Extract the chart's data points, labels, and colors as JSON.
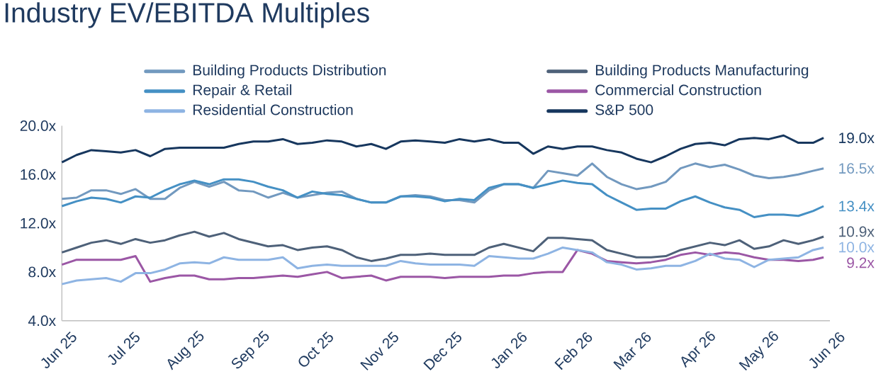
{
  "chart_data": {
    "type": "line",
    "title": "Industry EV/EBITDA Multiples",
    "x": [
      "2025-06-01",
      "2025-06-08",
      "2025-06-15",
      "2025-06-22",
      "2025-06-29",
      "2025-07-06",
      "2025-07-13",
      "2025-07-20",
      "2025-07-27",
      "2025-08-03",
      "2025-08-10",
      "2025-08-17",
      "2025-08-24",
      "2025-08-31",
      "2025-09-07",
      "2025-09-14",
      "2025-09-21",
      "2025-09-28",
      "2025-10-05",
      "2025-10-12",
      "2025-10-19",
      "2025-10-26",
      "2025-11-02",
      "2025-11-09",
      "2025-11-16",
      "2025-11-23",
      "2025-11-30",
      "2025-12-07",
      "2025-12-14",
      "2025-12-21",
      "2025-12-28",
      "2026-01-04",
      "2026-01-11",
      "2026-01-18",
      "2026-01-25",
      "2026-02-01",
      "2026-02-08",
      "2026-02-15",
      "2026-02-22",
      "2026-03-01",
      "2026-03-08",
      "2026-03-15",
      "2026-03-22",
      "2026-03-29",
      "2026-04-05",
      "2026-04-12",
      "2026-04-19",
      "2026-04-26",
      "2026-05-03",
      "2026-05-10",
      "2026-05-17",
      "2026-05-24",
      "2026-05-29"
    ],
    "xlim": [
      "2025-06-01",
      "2026-06-01"
    ],
    "xticks": [
      {
        "value": "2025-06-01",
        "label": "Jun 25"
      },
      {
        "value": "2025-07-01",
        "label": "Jul 25"
      },
      {
        "value": "2025-08-01",
        "label": "Aug 25"
      },
      {
        "value": "2025-09-01",
        "label": "Sep 25"
      },
      {
        "value": "2025-10-01",
        "label": "Oct 25"
      },
      {
        "value": "2025-11-01",
        "label": "Nov 25"
      },
      {
        "value": "2025-12-01",
        "label": "Dec 25"
      },
      {
        "value": "2026-01-01",
        "label": "Jan 26"
      },
      {
        "value": "2026-02-01",
        "label": "Feb 26"
      },
      {
        "value": "2026-03-01",
        "label": "Mar 26"
      },
      {
        "value": "2026-04-01",
        "label": "Apr 26"
      },
      {
        "value": "2026-05-01",
        "label": "May 26"
      },
      {
        "value": "2026-06-01",
        "label": "Jun 26"
      }
    ],
    "ylim": [
      4,
      20
    ],
    "yticks": [
      {
        "value": 4,
        "label": "4.0x"
      },
      {
        "value": 8,
        "label": "8.0x"
      },
      {
        "value": 12,
        "label": "12.0x"
      },
      {
        "value": 16,
        "label": "16.0x"
      },
      {
        "value": 20,
        "label": "20.0x"
      }
    ],
    "legend": "top",
    "series": [
      {
        "name": "Building Products Distribution",
        "color": "#7299BF",
        "values": [
          14.0,
          14.1,
          14.7,
          14.7,
          14.4,
          14.8,
          14.0,
          14.0,
          14.9,
          15.4,
          15.0,
          15.4,
          14.7,
          14.6,
          14.1,
          14.5,
          14.1,
          14.3,
          14.5,
          14.6,
          14.0,
          13.7,
          13.7,
          14.2,
          14.3,
          14.2,
          13.9,
          13.9,
          13.7,
          14.7,
          15.2,
          15.2,
          14.9,
          16.3,
          16.1,
          15.9,
          16.9,
          15.8,
          15.2,
          14.8,
          15.0,
          15.4,
          16.5,
          16.9,
          16.6,
          16.8,
          16.4,
          15.9,
          15.7,
          15.8,
          16.0,
          16.3,
          16.5
        ],
        "value_labels": [
          null,
          null,
          null,
          null,
          null,
          null,
          null,
          null,
          null,
          null,
          null,
          null,
          null,
          null,
          null,
          null,
          null,
          null,
          null,
          null,
          null,
          null,
          null,
          null,
          null,
          null,
          null,
          null,
          null,
          null,
          null,
          null,
          null,
          null,
          null,
          null,
          null,
          null,
          null,
          null,
          null,
          null,
          null,
          null,
          null,
          null,
          null,
          null,
          null,
          null,
          null,
          null,
          "16.5x"
        ]
      },
      {
        "name": "Building Products Manufacturing",
        "color": "#4E6179",
        "values": [
          9.6,
          10.0,
          10.4,
          10.6,
          10.3,
          10.7,
          10.4,
          10.6,
          11.0,
          11.3,
          10.9,
          11.2,
          10.7,
          10.4,
          10.1,
          10.2,
          9.8,
          10.0,
          10.1,
          9.8,
          9.2,
          8.9,
          9.1,
          9.4,
          9.4,
          9.5,
          9.4,
          9.4,
          9.4,
          10.0,
          10.3,
          10.0,
          9.7,
          10.8,
          10.8,
          10.7,
          10.6,
          9.8,
          9.5,
          9.2,
          9.2,
          9.3,
          9.8,
          10.1,
          10.4,
          10.2,
          10.6,
          9.9,
          10.1,
          10.6,
          10.3,
          10.6,
          10.9
        ],
        "value_labels": [
          null,
          null,
          null,
          null,
          null,
          null,
          null,
          null,
          null,
          null,
          null,
          null,
          null,
          null,
          null,
          null,
          null,
          null,
          null,
          null,
          null,
          null,
          null,
          null,
          null,
          null,
          null,
          null,
          null,
          null,
          null,
          null,
          null,
          null,
          null,
          null,
          null,
          null,
          null,
          null,
          null,
          null,
          null,
          null,
          null,
          null,
          null,
          null,
          null,
          null,
          null,
          null,
          "10.9x"
        ]
      },
      {
        "name": "Repair & Retail",
        "color": "#4590C4",
        "values": [
          13.4,
          13.8,
          14.1,
          14.0,
          13.7,
          14.2,
          14.1,
          14.7,
          15.2,
          15.5,
          15.2,
          15.6,
          15.6,
          15.4,
          15.0,
          14.7,
          14.1,
          14.6,
          14.4,
          14.3,
          14.0,
          13.7,
          13.7,
          14.2,
          14.2,
          14.1,
          13.8,
          14.0,
          13.9,
          14.9,
          15.2,
          15.2,
          14.9,
          15.2,
          15.5,
          15.3,
          15.2,
          14.3,
          13.7,
          13.1,
          13.2,
          13.2,
          13.8,
          14.2,
          13.7,
          13.3,
          13.1,
          12.5,
          12.7,
          12.7,
          12.6,
          13.0,
          13.4
        ],
        "value_labels": [
          null,
          null,
          null,
          null,
          null,
          null,
          null,
          null,
          null,
          null,
          null,
          null,
          null,
          null,
          null,
          null,
          null,
          null,
          null,
          null,
          null,
          null,
          null,
          null,
          null,
          null,
          null,
          null,
          null,
          null,
          null,
          null,
          null,
          null,
          null,
          null,
          null,
          null,
          null,
          null,
          null,
          null,
          null,
          null,
          null,
          null,
          null,
          null,
          null,
          null,
          null,
          null,
          "13.4x"
        ]
      },
      {
        "name": "Commercial Construction",
        "color": "#9B57A5",
        "values": [
          8.6,
          9.0,
          9.0,
          9.0,
          9.0,
          9.3,
          7.2,
          7.5,
          7.7,
          7.7,
          7.4,
          7.4,
          7.5,
          7.5,
          7.6,
          7.7,
          7.6,
          7.8,
          8.0,
          7.5,
          7.6,
          7.7,
          7.3,
          7.6,
          7.6,
          7.6,
          7.5,
          7.6,
          7.6,
          7.6,
          7.7,
          7.7,
          7.9,
          8.0,
          8.0,
          9.8,
          9.5,
          8.9,
          8.8,
          8.7,
          8.8,
          9.0,
          9.4,
          9.6,
          9.4,
          9.6,
          9.5,
          9.2,
          9.0,
          9.0,
          8.9,
          9.0,
          9.2
        ],
        "value_labels": [
          null,
          null,
          null,
          null,
          null,
          null,
          null,
          null,
          null,
          null,
          null,
          null,
          null,
          null,
          null,
          null,
          null,
          null,
          null,
          null,
          null,
          null,
          null,
          null,
          null,
          null,
          null,
          null,
          null,
          null,
          null,
          null,
          null,
          null,
          null,
          null,
          null,
          null,
          null,
          null,
          null,
          null,
          null,
          null,
          null,
          null,
          null,
          null,
          null,
          null,
          null,
          null,
          "9.2x"
        ]
      },
      {
        "name": "Residential Construction",
        "color": "#8EB4E3",
        "values": [
          7.0,
          7.3,
          7.4,
          7.5,
          7.2,
          7.9,
          7.9,
          8.2,
          8.7,
          8.8,
          8.7,
          9.2,
          9.0,
          9.0,
          9.0,
          9.2,
          8.3,
          8.5,
          8.6,
          8.5,
          8.5,
          8.5,
          8.5,
          8.9,
          8.7,
          8.6,
          8.6,
          8.6,
          8.5,
          9.3,
          9.2,
          9.1,
          9.1,
          9.5,
          10.0,
          9.8,
          9.6,
          8.8,
          8.6,
          8.2,
          8.3,
          8.5,
          8.5,
          8.9,
          9.5,
          9.1,
          9.0,
          8.4,
          9.0,
          9.1,
          9.2,
          9.8,
          10.0
        ],
        "value_labels": [
          null,
          null,
          null,
          null,
          null,
          null,
          null,
          null,
          null,
          null,
          null,
          null,
          null,
          null,
          null,
          null,
          null,
          null,
          null,
          null,
          null,
          null,
          null,
          null,
          null,
          null,
          null,
          null,
          null,
          null,
          null,
          null,
          null,
          null,
          null,
          null,
          null,
          null,
          null,
          null,
          null,
          null,
          null,
          null,
          null,
          null,
          null,
          null,
          null,
          null,
          null,
          null,
          "10.0x"
        ]
      },
      {
        "name": "S&P 500",
        "color": "#17375E",
        "values": [
          17.0,
          17.6,
          18.0,
          17.9,
          17.8,
          18.0,
          17.5,
          18.1,
          18.2,
          18.2,
          18.2,
          18.2,
          18.5,
          18.7,
          18.7,
          18.9,
          18.5,
          18.6,
          18.8,
          18.7,
          18.3,
          18.5,
          18.1,
          18.7,
          18.8,
          18.7,
          18.6,
          18.9,
          18.7,
          18.9,
          18.6,
          18.6,
          17.7,
          18.3,
          18.1,
          18.3,
          18.3,
          18.0,
          17.8,
          17.3,
          17.0,
          17.5,
          18.1,
          18.5,
          18.6,
          18.4,
          18.9,
          19.0,
          18.9,
          19.2,
          18.6,
          18.6,
          19.0
        ],
        "value_labels": [
          null,
          null,
          null,
          null,
          null,
          null,
          null,
          null,
          null,
          null,
          null,
          null,
          null,
          null,
          null,
          null,
          null,
          null,
          null,
          null,
          null,
          null,
          null,
          null,
          null,
          null,
          null,
          null,
          null,
          null,
          null,
          null,
          null,
          null,
          null,
          null,
          null,
          null,
          null,
          null,
          null,
          null,
          null,
          null,
          null,
          null,
          null,
          null,
          null,
          null,
          null,
          null,
          "19.0x"
        ]
      }
    ]
  }
}
